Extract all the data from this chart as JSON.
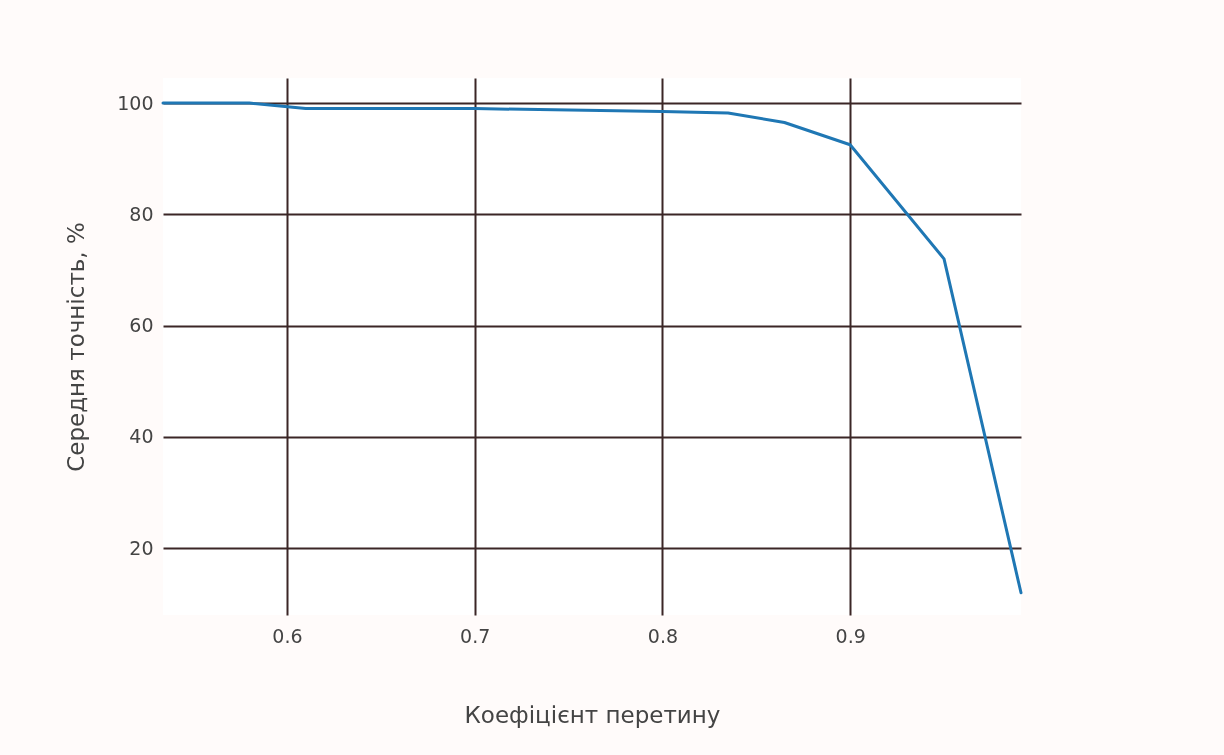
{
  "chart_data": {
    "type": "line",
    "xlabel": "Коефіцієнт перетину",
    "ylabel": "Середня точність, %",
    "x": [
      0.534,
      0.58,
      0.61,
      0.7,
      0.8,
      0.835,
      0.865,
      0.9,
      0.95,
      0.991
    ],
    "series": [
      {
        "color": "#1f77b4",
        "values": [
          100,
          100,
          99,
          99,
          98.5,
          98.2,
          96.5,
          92.5,
          72,
          12
        ]
      }
    ],
    "xlim": [
      0.534,
      0.991
    ],
    "xticks": [
      0.6,
      0.7,
      0.8,
      0.9
    ],
    "ylim": [
      8,
      104.5
    ],
    "yticks": [
      20,
      40,
      60,
      80,
      100
    ],
    "grid": true,
    "marker": "none",
    "line_style": "solid"
  }
}
